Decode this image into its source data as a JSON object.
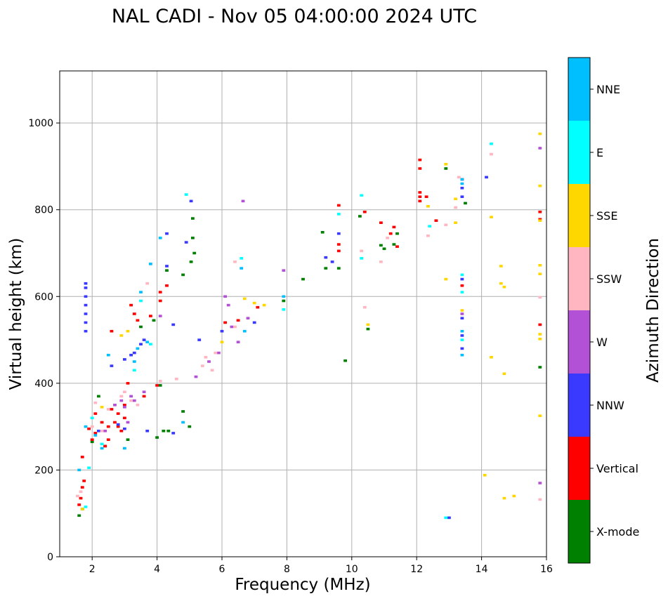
{
  "chart_data": {
    "type": "scatter",
    "title": "NAL CADI - Nov 05 04:00:00 2024 UTC",
    "xlabel": "Frequency (MHz)",
    "ylabel": "Virtual height (km)",
    "xlim": [
      1,
      16
    ],
    "ylim": [
      0,
      1120
    ],
    "xticks": [
      "2",
      "4",
      "6",
      "8",
      "10",
      "12",
      "14",
      "16"
    ],
    "yticks": [
      "0",
      "200",
      "400",
      "600",
      "800",
      "1000"
    ],
    "grid": true,
    "colorbar": {
      "label": "Azimuth Direction",
      "categories": [
        {
          "name": "X-mode",
          "color": "#008000"
        },
        {
          "name": "Vertical",
          "color": "#ff0000"
        },
        {
          "name": "NNW",
          "color": "#3a3aff"
        },
        {
          "name": "W",
          "color": "#b251d6"
        },
        {
          "name": "SSW",
          "color": "#ffb6c1"
        },
        {
          "name": "SSE",
          "color": "#ffd700"
        },
        {
          "name": "E",
          "color": "#00ffff"
        },
        {
          "name": "NNE",
          "color": "#00bfff"
        }
      ]
    },
    "series": [
      {
        "name": "X-mode",
        "points": [
          [
            1.6,
            95
          ],
          [
            1.7,
            110
          ],
          [
            2.0,
            265
          ],
          [
            2.2,
            370
          ],
          [
            2.4,
            255
          ],
          [
            3.1,
            270
          ],
          [
            3.5,
            530
          ],
          [
            3.9,
            545
          ],
          [
            4.0,
            275
          ],
          [
            4.1,
            395
          ],
          [
            4.2,
            290
          ],
          [
            4.3,
            660
          ],
          [
            4.35,
            290
          ],
          [
            4.8,
            335
          ],
          [
            4.8,
            650
          ],
          [
            5.0,
            300
          ],
          [
            5.05,
            680
          ],
          [
            5.1,
            780
          ],
          [
            5.15,
            700
          ],
          [
            5.1,
            735
          ],
          [
            7.9,
            590
          ],
          [
            8.5,
            640
          ],
          [
            9.2,
            665
          ],
          [
            9.1,
            748
          ],
          [
            9.6,
            665
          ],
          [
            9.8,
            452
          ],
          [
            10.25,
            785
          ],
          [
            10.5,
            525
          ],
          [
            10.9,
            718
          ],
          [
            11.0,
            710
          ],
          [
            11.3,
            720
          ],
          [
            11.4,
            745
          ],
          [
            12.9,
            895
          ],
          [
            13.5,
            815
          ],
          [
            15.8,
            437
          ]
        ]
      },
      {
        "name": "Vertical",
        "points": [
          [
            1.6,
            120
          ],
          [
            1.65,
            135
          ],
          [
            1.7,
            160
          ],
          [
            1.7,
            230
          ],
          [
            1.75,
            175
          ],
          [
            1.9,
            295
          ],
          [
            2.0,
            270
          ],
          [
            2.1,
            285
          ],
          [
            2.1,
            330
          ],
          [
            2.3,
            310
          ],
          [
            2.4,
            255
          ],
          [
            2.5,
            300
          ],
          [
            2.5,
            270
          ],
          [
            2.6,
            520
          ],
          [
            2.6,
            340
          ],
          [
            2.7,
            310
          ],
          [
            2.8,
            300
          ],
          [
            2.8,
            330
          ],
          [
            2.9,
            290
          ],
          [
            3.0,
            320
          ],
          [
            3.0,
            350
          ],
          [
            3.1,
            400
          ],
          [
            3.2,
            580
          ],
          [
            3.3,
            560
          ],
          [
            3.4,
            545
          ],
          [
            3.6,
            370
          ],
          [
            3.8,
            555
          ],
          [
            4.0,
            395
          ],
          [
            4.1,
            610
          ],
          [
            4.1,
            590
          ],
          [
            4.3,
            625
          ],
          [
            6.1,
            540
          ],
          [
            6.5,
            545
          ],
          [
            7.1,
            575
          ],
          [
            9.6,
            810
          ],
          [
            9.6,
            720
          ],
          [
            9.6,
            705
          ],
          [
            10.4,
            795
          ],
          [
            10.9,
            770
          ],
          [
            11.2,
            745
          ],
          [
            11.3,
            760
          ],
          [
            11.4,
            715
          ],
          [
            12.1,
            915
          ],
          [
            12.1,
            895
          ],
          [
            12.1,
            840
          ],
          [
            12.1,
            830
          ],
          [
            12.1,
            820
          ],
          [
            12.3,
            830
          ],
          [
            12.6,
            775
          ],
          [
            13.4,
            870
          ],
          [
            13.4,
            625
          ],
          [
            15.8,
            795
          ],
          [
            15.8,
            778
          ],
          [
            15.8,
            535
          ]
        ]
      },
      {
        "name": "NNW",
        "points": [
          [
            1.8,
            630
          ],
          [
            1.8,
            620
          ],
          [
            1.8,
            600
          ],
          [
            1.8,
            580
          ],
          [
            1.8,
            560
          ],
          [
            1.8,
            540
          ],
          [
            1.8,
            520
          ],
          [
            2.2,
            290
          ],
          [
            2.6,
            440
          ],
          [
            2.8,
            305
          ],
          [
            3.0,
            295
          ],
          [
            3.0,
            455
          ],
          [
            3.2,
            465
          ],
          [
            3.3,
            470
          ],
          [
            3.5,
            490
          ],
          [
            3.6,
            500
          ],
          [
            3.7,
            290
          ],
          [
            4.3,
            745
          ],
          [
            4.3,
            670
          ],
          [
            4.5,
            535
          ],
          [
            4.5,
            285
          ],
          [
            4.9,
            725
          ],
          [
            5.05,
            820
          ],
          [
            5.3,
            500
          ],
          [
            6.0,
            520
          ],
          [
            7.0,
            540
          ],
          [
            9.2,
            690
          ],
          [
            9.4,
            680
          ],
          [
            9.6,
            745
          ],
          [
            13.0,
            90
          ],
          [
            13.4,
            850
          ],
          [
            13.4,
            830
          ],
          [
            13.4,
            640
          ],
          [
            13.4,
            550
          ],
          [
            13.4,
            510
          ],
          [
            13.4,
            480
          ],
          [
            14.15,
            875
          ]
        ]
      },
      {
        "name": "W",
        "points": [
          [
            2.4,
            290
          ],
          [
            2.7,
            350
          ],
          [
            2.9,
            360
          ],
          [
            3.0,
            345
          ],
          [
            3.1,
            310
          ],
          [
            3.2,
            370
          ],
          [
            3.3,
            360
          ],
          [
            3.6,
            380
          ],
          [
            4.1,
            555
          ],
          [
            5.2,
            415
          ],
          [
            5.6,
            450
          ],
          [
            5.9,
            470
          ],
          [
            6.1,
            600
          ],
          [
            6.2,
            580
          ],
          [
            6.3,
            530
          ],
          [
            6.5,
            495
          ],
          [
            6.65,
            820
          ],
          [
            6.8,
            550
          ],
          [
            7.9,
            660
          ],
          [
            13.4,
            560
          ],
          [
            15.8,
            942
          ],
          [
            15.8,
            170
          ]
        ]
      },
      {
        "name": "SSW",
        "points": [
          [
            1.55,
            140
          ],
          [
            1.65,
            150
          ],
          [
            2.0,
            300
          ],
          [
            2.1,
            355
          ],
          [
            2.3,
            290
          ],
          [
            2.5,
            340
          ],
          [
            2.9,
            370
          ],
          [
            3.0,
            380
          ],
          [
            3.2,
            360
          ],
          [
            3.4,
            350
          ],
          [
            3.7,
            630
          ],
          [
            4.1,
            405
          ],
          [
            4.6,
            410
          ],
          [
            5.4,
            440
          ],
          [
            5.5,
            460
          ],
          [
            5.7,
            430
          ],
          [
            5.8,
            470
          ],
          [
            6.4,
            530
          ],
          [
            6.4,
            680
          ],
          [
            10.3,
            705
          ],
          [
            10.4,
            575
          ],
          [
            10.9,
            680
          ],
          [
            11.1,
            735
          ],
          [
            12.35,
            740
          ],
          [
            12.9,
            765
          ],
          [
            13.2,
            805
          ],
          [
            13.3,
            875
          ],
          [
            14.3,
            928
          ],
          [
            15.8,
            598
          ],
          [
            15.8,
            132
          ]
        ]
      },
      {
        "name": "SSE",
        "points": [
          [
            1.7,
            110
          ],
          [
            2.3,
            345
          ],
          [
            2.9,
            510
          ],
          [
            3.1,
            520
          ],
          [
            6.0,
            495
          ],
          [
            6.7,
            595
          ],
          [
            7.0,
            585
          ],
          [
            7.3,
            580
          ],
          [
            10.5,
            535
          ],
          [
            12.35,
            808
          ],
          [
            12.9,
            640
          ],
          [
            12.9,
            905
          ],
          [
            13.2,
            770
          ],
          [
            13.2,
            825
          ],
          [
            13.4,
            568
          ],
          [
            14.1,
            188
          ],
          [
            14.3,
            460
          ],
          [
            14.3,
            783
          ],
          [
            14.6,
            630
          ],
          [
            14.6,
            670
          ],
          [
            14.7,
            422
          ],
          [
            14.7,
            622
          ],
          [
            14.7,
            135
          ],
          [
            15.0,
            140
          ],
          [
            15.8,
            975
          ],
          [
            15.8,
            855
          ],
          [
            15.8,
            775
          ],
          [
            15.8,
            672
          ],
          [
            15.8,
            652
          ],
          [
            15.8,
            513
          ],
          [
            15.8,
            502
          ],
          [
            15.8,
            325
          ]
        ]
      },
      {
        "name": "E",
        "points": [
          [
            1.8,
            115
          ],
          [
            1.9,
            205
          ],
          [
            2.0,
            320
          ],
          [
            2.3,
            260
          ],
          [
            3.3,
            430
          ],
          [
            3.5,
            590
          ],
          [
            3.8,
            490
          ],
          [
            4.9,
            835
          ],
          [
            6.6,
            688
          ],
          [
            7.9,
            570
          ],
          [
            9.6,
            790
          ],
          [
            10.3,
            833
          ],
          [
            10.3,
            688
          ],
          [
            12.4,
            762
          ],
          [
            12.9,
            90
          ],
          [
            13.4,
            650
          ],
          [
            13.4,
            610
          ],
          [
            13.4,
            500
          ],
          [
            14.3,
            952
          ]
        ]
      },
      {
        "name": "NNE",
        "points": [
          [
            1.6,
            200
          ],
          [
            1.8,
            300
          ],
          [
            2.1,
            280
          ],
          [
            2.3,
            250
          ],
          [
            2.5,
            465
          ],
          [
            3.0,
            250
          ],
          [
            3.3,
            450
          ],
          [
            3.4,
            480
          ],
          [
            3.5,
            610
          ],
          [
            3.7,
            495
          ],
          [
            3.8,
            675
          ],
          [
            4.1,
            735
          ],
          [
            4.8,
            310
          ],
          [
            6.6,
            665
          ],
          [
            6.7,
            520
          ],
          [
            7.9,
            600
          ],
          [
            13.4,
            870
          ],
          [
            13.4,
            860
          ],
          [
            13.4,
            520
          ],
          [
            13.4,
            465
          ]
        ]
      }
    ]
  }
}
